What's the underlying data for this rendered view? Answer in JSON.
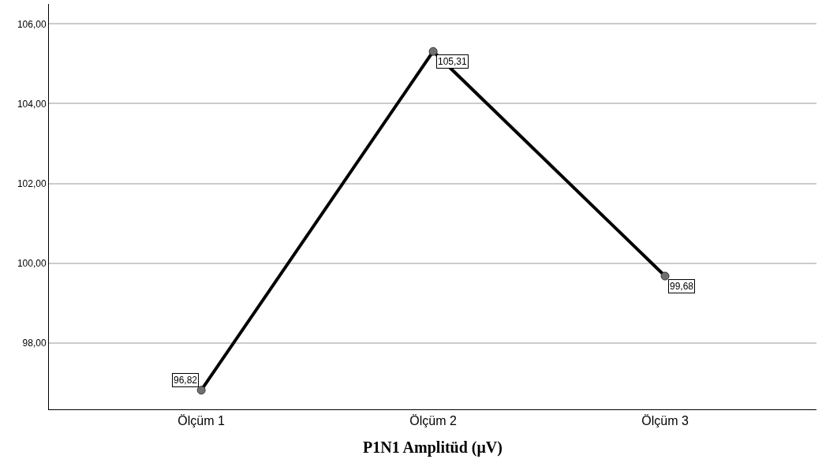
{
  "chart_data": {
    "type": "line",
    "xlabel": "P1N1 Amplitüd (μV)",
    "categories": [
      "Ölçüm 1",
      "Ölçüm 2",
      "Ölçüm 3"
    ],
    "series": [
      {
        "color": "#000000",
        "values": [
          96.82,
          105.31,
          99.68
        ],
        "value_labels": [
          "96,82",
          "105,31",
          "99,68"
        ]
      }
    ],
    "ylim": [
      96.34,
      106.5
    ],
    "yticks": [
      {
        "value": 98,
        "label": "98,00"
      },
      {
        "value": 100,
        "label": "100,00"
      },
      {
        "value": 102,
        "label": "102,00"
      },
      {
        "value": 104,
        "label": "104,00"
      },
      {
        "value": 106,
        "label": "106,00"
      }
    ],
    "grid": "y",
    "legend": false,
    "marker": "circle",
    "line_style": "solid"
  }
}
